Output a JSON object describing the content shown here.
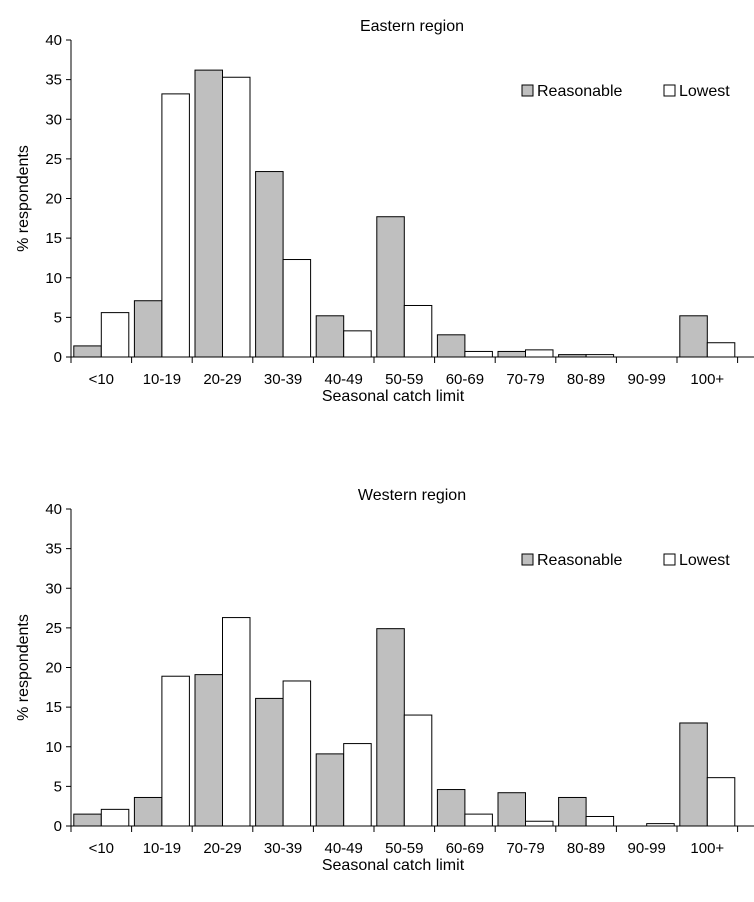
{
  "chart_data": [
    {
      "type": "bar",
      "title": "Eastern region",
      "xlabel": "Seasonal catch limit",
      "ylabel": "% respondents",
      "ylim": [
        0,
        40
      ],
      "yticks": [
        0,
        5,
        10,
        15,
        20,
        25,
        30,
        35,
        40
      ],
      "categories": [
        "<10",
        "10-19",
        "20-29",
        "30-39",
        "40-49",
        "50-59",
        "60-69",
        "70-79",
        "80-89",
        "90-99",
        "100+"
      ],
      "series": [
        {
          "name": "Reasonable",
          "color": "#bfbfbf",
          "values": [
            1.4,
            7.1,
            36.2,
            23.4,
            5.2,
            17.7,
            2.8,
            0.7,
            0.3,
            0,
            5.2
          ]
        },
        {
          "name": "Lowest",
          "color": "#ffffff",
          "values": [
            5.6,
            33.2,
            35.3,
            12.3,
            3.3,
            6.5,
            0.7,
            0.9,
            0.3,
            0,
            1.8
          ]
        }
      ],
      "legend": "top-right",
      "grid": false
    },
    {
      "type": "bar",
      "title": "Western region",
      "xlabel": "Seasonal catch limit",
      "ylabel": "% respondents",
      "ylim": [
        0,
        40
      ],
      "yticks": [
        0,
        5,
        10,
        15,
        20,
        25,
        30,
        35,
        40
      ],
      "categories": [
        "<10",
        "10-19",
        "20-29",
        "30-39",
        "40-49",
        "50-59",
        "60-69",
        "70-79",
        "80-89",
        "90-99",
        "100+"
      ],
      "series": [
        {
          "name": "Reasonable",
          "color": "#bfbfbf",
          "values": [
            1.5,
            3.6,
            19.1,
            16.1,
            9.1,
            24.9,
            4.6,
            4.2,
            3.6,
            0,
            13.0
          ]
        },
        {
          "name": "Lowest",
          "color": "#ffffff",
          "values": [
            2.1,
            18.9,
            26.3,
            18.3,
            10.4,
            14.0,
            1.5,
            0.6,
            1.2,
            0.3,
            6.1
          ]
        }
      ],
      "legend": "top-right",
      "grid": false
    }
  ]
}
